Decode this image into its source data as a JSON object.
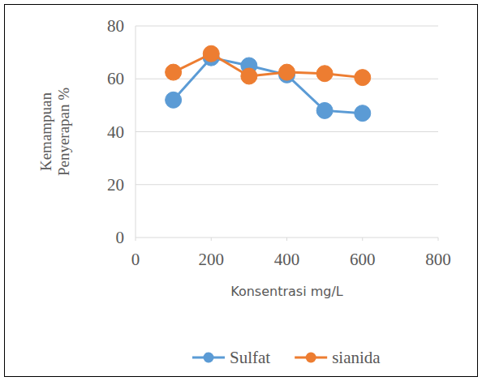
{
  "chart_data": {
    "type": "line",
    "x_label": "Konsentrasi mg/L",
    "y_label": "Kemampuan Penyerapan %",
    "x": [
      100,
      200,
      300,
      400,
      500,
      600
    ],
    "series": [
      {
        "name": "Sulfat",
        "color": "#5b9bd5",
        "marker": "circle",
        "values": [
          52,
          68,
          65,
          61.5,
          48,
          47
        ]
      },
      {
        "name": "sianida",
        "color": "#ed7d31",
        "marker": "circle",
        "values": [
          62.5,
          69.5,
          61,
          62.5,
          62,
          60.5
        ]
      }
    ],
    "xlim": [
      0,
      800
    ],
    "xticks": [
      0,
      200,
      400,
      600,
      800
    ],
    "ylim": [
      0,
      80
    ],
    "yticks": [
      0,
      20,
      40,
      60,
      80
    ],
    "grid": true,
    "legend": "bottom"
  }
}
